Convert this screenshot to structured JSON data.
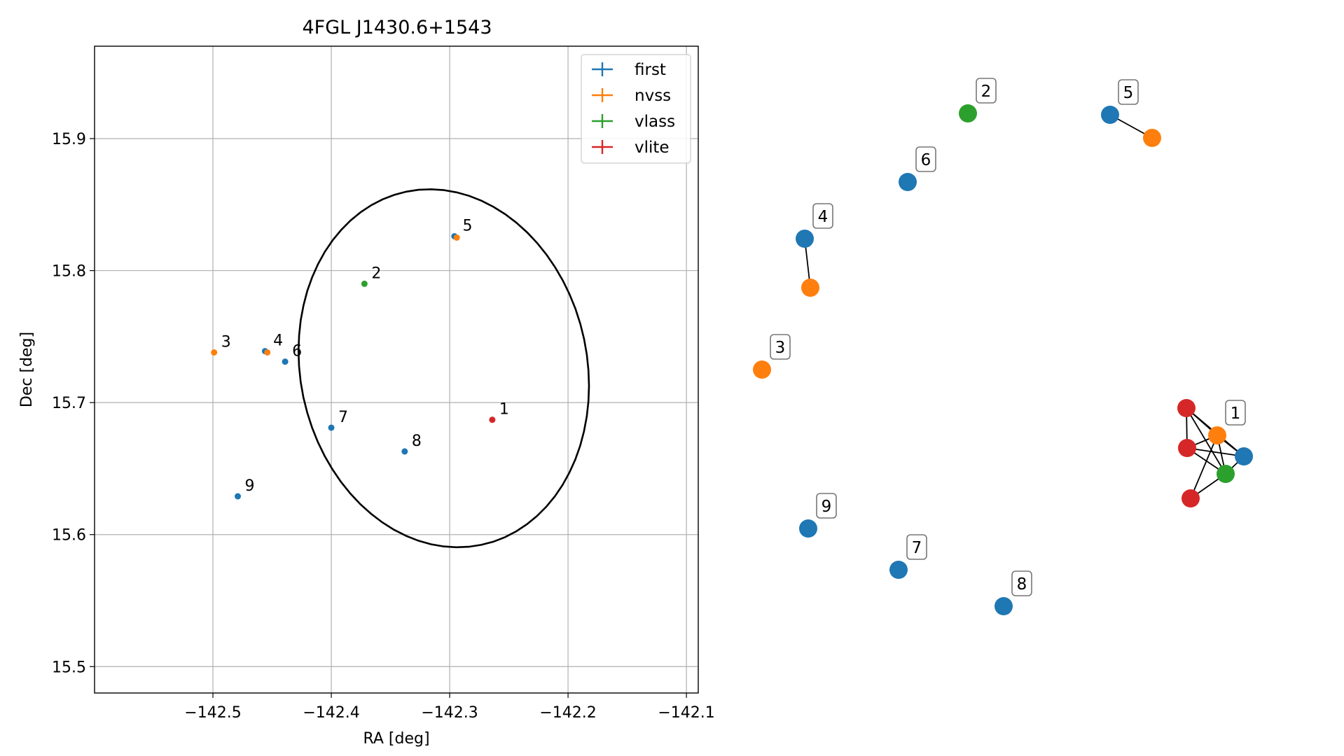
{
  "chart_data": [
    {
      "type": "scatter",
      "title": "4FGL J1430.6+1543",
      "xlabel": "RA [deg]",
      "ylabel": "Dec [deg]",
      "xlim": [
        -142.6,
        -142.09
      ],
      "ylim": [
        15.48,
        15.97
      ],
      "x_ticks": [
        -142.5,
        -142.4,
        -142.3,
        -142.2,
        -142.1
      ],
      "x_tick_labels": [
        "−142.5",
        "−142.4",
        "−142.3",
        "−142.2",
        "−142.1"
      ],
      "y_ticks": [
        15.5,
        15.6,
        15.7,
        15.8,
        15.9
      ],
      "y_tick_labels": [
        "15.5",
        "15.6",
        "15.7",
        "15.8",
        "15.9"
      ],
      "grid": true,
      "legend_position": "top-right",
      "legend": [
        {
          "name": "first",
          "color": "#1f77b4"
        },
        {
          "name": "nvss",
          "color": "#ff7f0e"
        },
        {
          "name": "vlass",
          "color": "#2ca02c"
        },
        {
          "name": "vlite",
          "color": "#d62728"
        }
      ],
      "ellipse": {
        "center": [
          -142.305,
          15.726
        ],
        "semi_axis_ra": 0.12,
        "semi_axis_dec": 0.138,
        "angle_deg": 22,
        "color": "#000000"
      },
      "points": [
        {
          "survey": "vlite",
          "ra": -142.264,
          "dec": 15.687,
          "color": "#d62728"
        },
        {
          "survey": "vlass",
          "ra": -142.372,
          "dec": 15.79,
          "color": "#2ca02c"
        },
        {
          "survey": "nvss",
          "ra": -142.499,
          "dec": 15.738,
          "color": "#ff7f0e"
        },
        {
          "survey": "first",
          "ra": -142.456,
          "dec": 15.739,
          "color": "#1f77b4"
        },
        {
          "survey": "nvss",
          "ra": -142.454,
          "dec": 15.738,
          "color": "#ff7f0e"
        },
        {
          "survey": "first",
          "ra": -142.296,
          "dec": 15.826,
          "color": "#1f77b4"
        },
        {
          "survey": "nvss",
          "ra": -142.294,
          "dec": 15.825,
          "color": "#ff7f0e"
        },
        {
          "survey": "first",
          "ra": -142.439,
          "dec": 15.731,
          "color": "#1f77b4"
        },
        {
          "survey": "first",
          "ra": -142.4,
          "dec": 15.681,
          "color": "#1f77b4"
        },
        {
          "survey": "first",
          "ra": -142.338,
          "dec": 15.663,
          "color": "#1f77b4"
        },
        {
          "survey": "first",
          "ra": -142.479,
          "dec": 15.629,
          "color": "#1f77b4"
        }
      ],
      "point_labels": [
        {
          "text": "1",
          "ra": -142.264,
          "dec": 15.687
        },
        {
          "text": "2",
          "ra": -142.372,
          "dec": 15.79
        },
        {
          "text": "3",
          "ra": -142.499,
          "dec": 15.738
        },
        {
          "text": "4",
          "ra": -142.455,
          "dec": 15.739
        },
        {
          "text": "5",
          "ra": -142.295,
          "dec": 15.826
        },
        {
          "text": "6",
          "ra": -142.439,
          "dec": 15.731
        },
        {
          "text": "7",
          "ra": -142.4,
          "dec": 15.681
        },
        {
          "text": "8",
          "ra": -142.338,
          "dec": 15.663
        },
        {
          "text": "9",
          "ra": -142.479,
          "dec": 15.629
        }
      ]
    },
    {
      "type": "network",
      "nodes": [
        {
          "id": "first-5",
          "color": "#1f77b4",
          "label": "5"
        },
        {
          "id": "nvss-5",
          "color": "#ff7f0e",
          "label": ""
        },
        {
          "id": "vlass-2",
          "color": "#2ca02c",
          "label": "2"
        },
        {
          "id": "first-6",
          "color": "#1f77b4",
          "label": "6"
        },
        {
          "id": "first-4",
          "color": "#1f77b4",
          "label": "4"
        },
        {
          "id": "nvss-4",
          "color": "#ff7f0e",
          "label": ""
        },
        {
          "id": "nvss-3",
          "color": "#ff7f0e",
          "label": "3"
        },
        {
          "id": "vlite-a",
          "color": "#d62728",
          "label": ""
        },
        {
          "id": "nvss-1",
          "color": "#ff7f0e",
          "label": "1"
        },
        {
          "id": "vlite-b",
          "color": "#d62728",
          "label": ""
        },
        {
          "id": "first-1",
          "color": "#1f77b4",
          "label": ""
        },
        {
          "id": "vlass-1",
          "color": "#2ca02c",
          "label": ""
        },
        {
          "id": "vlite-c",
          "color": "#d62728",
          "label": ""
        },
        {
          "id": "first-9",
          "color": "#1f77b4",
          "label": "9"
        },
        {
          "id": "first-7",
          "color": "#1f77b4",
          "label": "7"
        },
        {
          "id": "first-8",
          "color": "#1f77b4",
          "label": "8"
        }
      ],
      "edges": [
        [
          "first-5",
          "nvss-5"
        ],
        [
          "first-4",
          "nvss-4"
        ],
        [
          "vlite-a",
          "nvss-1"
        ],
        [
          "vlite-a",
          "first-1"
        ],
        [
          "vlite-a",
          "vlass-1"
        ],
        [
          "vlite-a",
          "vlite-b"
        ],
        [
          "vlite-b",
          "first-1"
        ],
        [
          "vlite-b",
          "vlass-1"
        ],
        [
          "vlite-b",
          "nvss-1"
        ],
        [
          "vlite-c",
          "vlass-1"
        ],
        [
          "vlite-c",
          "nvss-1"
        ],
        [
          "nvss-1",
          "vlass-1"
        ],
        [
          "nvss-1",
          "first-1"
        ],
        [
          "first-1",
          "vlass-1"
        ]
      ]
    }
  ]
}
